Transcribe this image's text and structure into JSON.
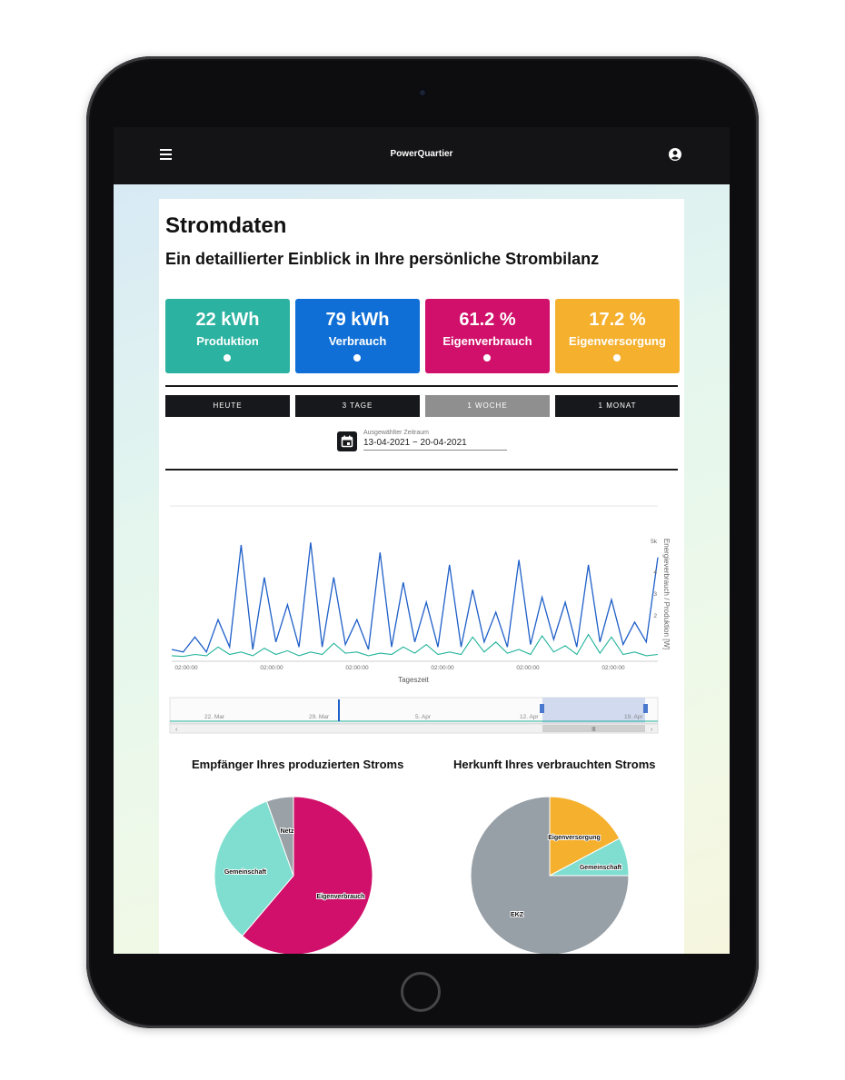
{
  "app": {
    "title": "PowerQuartier",
    "menu_icon": "menu-icon",
    "account_icon": "account-icon"
  },
  "page": {
    "title": "Stromdaten",
    "subtitle": "Ein detaillierter Einblick in Ihre persönliche Strombilanz"
  },
  "stats": [
    {
      "value": "22 kWh",
      "label": "Produktion",
      "color": "#2bb2a0"
    },
    {
      "value": "79 kWh",
      "label": "Verbrauch",
      "color": "#0f6fd6"
    },
    {
      "value": "61.2 %",
      "label": "Eigenverbrauch",
      "color": "#d0106a"
    },
    {
      "value": "17.2 %",
      "label": "Eigenversorgung",
      "color": "#f5b02e"
    }
  ],
  "ranges": [
    "HEUTE",
    "3 TAGE",
    "1 WOCHE",
    "1 MONAT"
  ],
  "selected_range": "1 WOCHE",
  "date_picker": {
    "caption": "Ausgewählter Zeitraum",
    "value": "13-04-2021 ~ 20-04-2021",
    "icon": "calendar-icon"
  },
  "chart_data": [
    {
      "type": "line",
      "title": "",
      "xlabel": "Tageszeit",
      "ylabel": "Energieverbrauch / Produktion [W]",
      "x_tick_labels": [
        "02:00:00",
        "02:00:00",
        "02:00:00",
        "02:00:00",
        "02:00:00",
        "02:00:00"
      ],
      "y_tick_labels": [
        "5k",
        "4",
        "3",
        "2"
      ],
      "ylim": [
        0,
        5000
      ],
      "x": [
        0,
        4,
        8,
        12,
        16,
        20,
        24,
        28,
        32,
        36,
        40,
        44,
        48,
        52,
        56,
        60,
        64,
        68,
        72,
        76,
        80,
        84,
        88,
        92,
        96,
        100,
        104,
        108,
        112,
        116,
        120,
        124,
        128,
        132,
        136,
        140,
        144,
        148,
        152,
        156,
        160,
        164,
        168
      ],
      "series": [
        {
          "color": "#1f5fc8",
          "values": [
            400,
            300,
            900,
            300,
            1600,
            500,
            4600,
            400,
            3300,
            700,
            2200,
            500,
            4700,
            500,
            3300,
            600,
            1600,
            400,
            4300,
            500,
            3100,
            700,
            2300,
            500,
            3800,
            500,
            2800,
            700,
            1900,
            500,
            4000,
            600,
            2500,
            800,
            2300,
            500,
            3800,
            700,
            2400,
            600,
            1500,
            700,
            4100
          ]
        },
        {
          "color": "#22b39a",
          "values": [
            150,
            120,
            200,
            150,
            500,
            200,
            300,
            150,
            450,
            200,
            350,
            150,
            300,
            200,
            650,
            250,
            300,
            150,
            250,
            200,
            500,
            250,
            600,
            200,
            300,
            200,
            900,
            300,
            700,
            250,
            400,
            200,
            950,
            300,
            550,
            200,
            1000,
            250,
            900,
            200,
            300,
            150,
            200
          ]
        }
      ]
    },
    {
      "type": "pie",
      "title": "Empfänger Ihres produzierten Stroms",
      "labels": [
        "Eigenverbrauch",
        "Gemeinschaft",
        "Netz"
      ],
      "values": [
        61.2,
        33.3,
        5.5
      ],
      "colors": [
        "#d0106a",
        "#7fded0",
        "#9aa2a8"
      ]
    },
    {
      "type": "pie",
      "title": "Herkunft Ihres verbrauchten Stroms",
      "labels": [
        "Eigenversorgung",
        "Gemeinschaft",
        "EKZ"
      ],
      "values": [
        17.2,
        7.8,
        75.0
      ],
      "colors": [
        "#f5b02e",
        "#7fded0",
        "#98a0a7"
      ]
    }
  ],
  "navigator": {
    "labels": [
      "22. Mar",
      "29. Mar",
      "5. Apr",
      "12. Apr",
      "19. Apr"
    ]
  }
}
